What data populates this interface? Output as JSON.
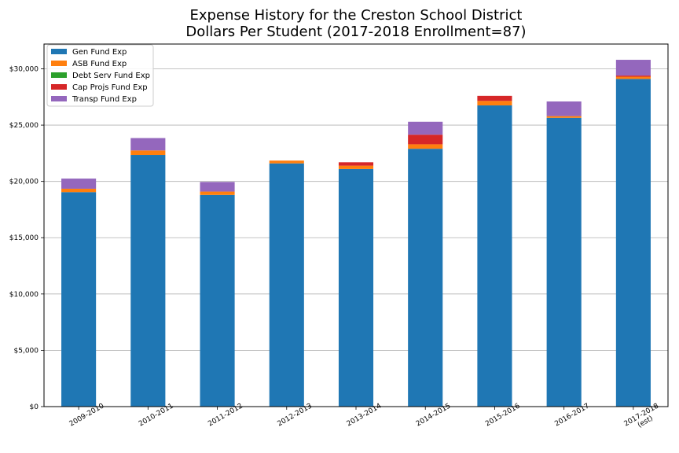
{
  "chart_data": {
    "type": "bar",
    "stacked": true,
    "title_line1": "Expense History for the Creston School District",
    "title_line2": "Dollars Per Student (2017-2018 Enrollment=87)",
    "xlabel": "",
    "ylabel": "",
    "ylim": [
      0,
      32200
    ],
    "yticks": [
      {
        "value": 0,
        "label": "$0"
      },
      {
        "value": 5000,
        "label": "$5,000"
      },
      {
        "value": 10000,
        "label": "$10,000"
      },
      {
        "value": 15000,
        "label": "$15,000"
      },
      {
        "value": 20000,
        "label": "$20,000"
      },
      {
        "value": 25000,
        "label": "$25,000"
      },
      {
        "value": 30000,
        "label": "$30,000"
      }
    ],
    "grid": "horizontal",
    "legend_position": "top-left",
    "categories": [
      [
        "2009-2010"
      ],
      [
        "2010-2011"
      ],
      [
        "2011-2012"
      ],
      [
        "2012-2013"
      ],
      [
        "2013-2014"
      ],
      [
        "2014-2015"
      ],
      [
        "2015-2016"
      ],
      [
        "2016-2017"
      ],
      [
        "2017-2018",
        "(est)"
      ]
    ],
    "series": [
      {
        "name": "Gen Fund Exp",
        "color": "#1f77b4",
        "values": [
          19050,
          22350,
          18800,
          21600,
          21100,
          22900,
          26750,
          25650,
          29100
        ]
      },
      {
        "name": "ASB Fund Exp",
        "color": "#ff7f0e",
        "values": [
          300,
          400,
          300,
          250,
          300,
          400,
          400,
          150,
          200
        ]
      },
      {
        "name": "Debt Serv Fund Exp",
        "color": "#2ca02c",
        "values": [
          0,
          0,
          0,
          0,
          0,
          0,
          0,
          0,
          0
        ]
      },
      {
        "name": "Cap Projs Fund Exp",
        "color": "#d62728",
        "values": [
          0,
          0,
          0,
          0,
          300,
          850,
          450,
          0,
          100
        ]
      },
      {
        "name": "Transp Fund Exp",
        "color": "#9467bd",
        "values": [
          900,
          1100,
          850,
          0,
          0,
          1150,
          0,
          1300,
          1400
        ]
      }
    ]
  }
}
